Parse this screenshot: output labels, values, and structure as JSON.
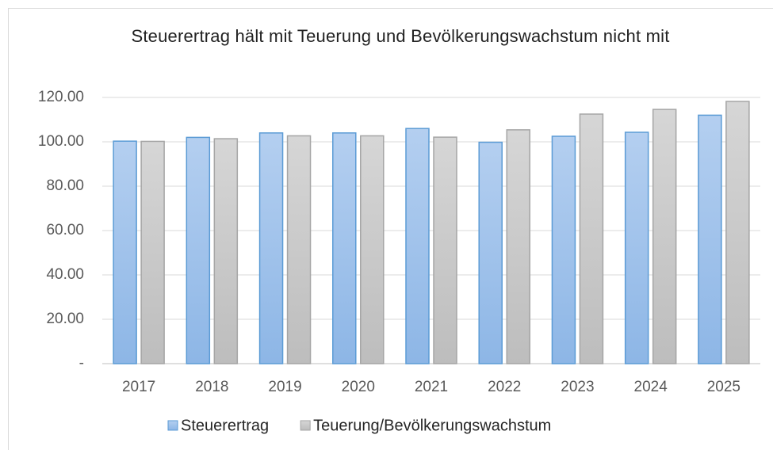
{
  "chart_data": {
    "type": "bar",
    "title": "Steuerertrag hält mit Teuerung und Bevölkerungswachstum nicht mit",
    "categories": [
      "2017",
      "2018",
      "2019",
      "2020",
      "2021",
      "2022",
      "2023",
      "2024",
      "2025"
    ],
    "series": [
      {
        "name": "Steuerertrag",
        "color": "#5b9bd5",
        "values": [
          100.3,
          102,
          104,
          104,
          106,
          99.8,
          102.5,
          104.3,
          112
        ]
      },
      {
        "name": "Teuerung/Bevölkerungswachstum",
        "color": "#a5a5a5",
        "values": [
          100.2,
          101.4,
          102.7,
          102.7,
          102.1,
          105.4,
          112.5,
          114.6,
          118.2
        ]
      }
    ],
    "ylim": [
      0,
      120
    ],
    "yticks": [
      {
        "value": 0,
        "label": "-"
      },
      {
        "value": 20,
        "label": "20.00"
      },
      {
        "value": 40,
        "label": "40.00"
      },
      {
        "value": 60,
        "label": "60.00"
      },
      {
        "value": 80,
        "label": "80.00"
      },
      {
        "value": 100,
        "label": "100.00"
      },
      {
        "value": 120,
        "label": "120.00"
      }
    ],
    "grid": true,
    "legend": "bottom"
  }
}
